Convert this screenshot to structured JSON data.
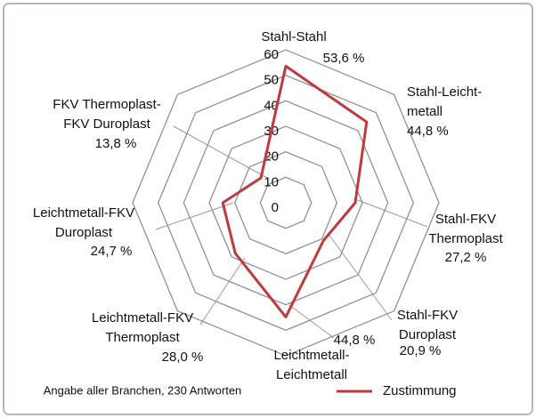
{
  "chart_data": {
    "type": "radar",
    "categories": [
      [
        "Stahl-Stahl"
      ],
      [
        "Stahl-Leicht-",
        "metall"
      ],
      [
        "Stahl-FKV",
        "Thermoplast"
      ],
      [
        "Stahl-FKV",
        "Duroplast"
      ],
      [
        "Leichtmetall-",
        "Leichtmetall"
      ],
      [
        "Leichtmetall-FKV",
        "Thermoplast"
      ],
      [
        "Leichtmetall-FKV",
        "Duroplast"
      ],
      [
        "FKV Thermoplast-",
        "FKV Duroplast"
      ]
    ],
    "series": [
      {
        "name": "Zustimmung",
        "color": "#c0393b",
        "values": [
          53.6,
          44.8,
          27.2,
          20.9,
          44.8,
          28.0,
          24.7,
          13.8
        ],
        "value_labels": [
          "53,6 %",
          "44,8 %",
          "27,2 %",
          "20,9 %",
          "44,8 %",
          "28,0 %",
          "24,7 %",
          "13,8 %"
        ]
      }
    ],
    "ylim": [
      0,
      60
    ],
    "yticks": [
      0,
      10,
      20,
      30,
      40,
      50,
      60
    ],
    "grid": true,
    "note": "Angabe aller Branchen, 230 Antworten"
  }
}
